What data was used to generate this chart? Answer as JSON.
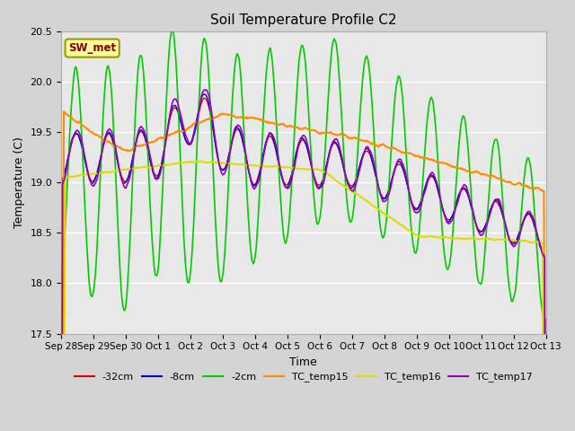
{
  "title": "Soil Temperature Profile C2",
  "xlabel": "Time",
  "ylabel": "Temperature (C)",
  "ylim": [
    17.5,
    20.5
  ],
  "yticks": [
    17.5,
    18.0,
    18.5,
    19.0,
    19.5,
    20.0,
    20.5
  ],
  "xtick_labels": [
    "Sep 28",
    "Sep 29",
    "Sep 30",
    "Oct 1",
    "Oct 2",
    "Oct 3",
    "Oct 4",
    "Oct 5",
    "Oct 6",
    "Oct 7",
    "Oct 8",
    "Oct 9",
    "Oct 10",
    "Oct 11",
    "Oct 12",
    "Oct 13"
  ],
  "colors": {
    "-32cm": "#dd0000",
    "-8cm": "#0000dd",
    "-2cm": "#00cc00",
    "TC_temp15": "#ff8c00",
    "TC_temp16": "#dddd00",
    "TC_temp17": "#9900bb"
  },
  "fig_bg": "#d4d4d4",
  "plot_bg": "#e8e8e8"
}
